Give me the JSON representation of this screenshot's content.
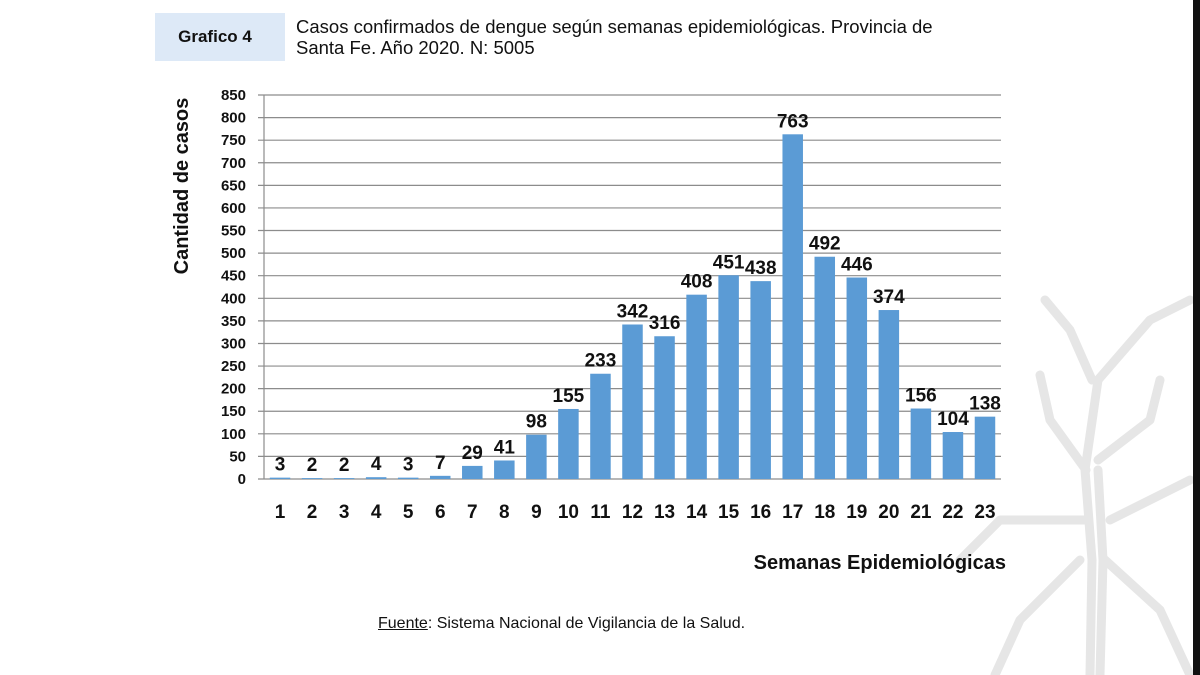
{
  "header": {
    "badge": "Grafico 4",
    "title_line1": "Casos confirmados de dengue según semanas epidemiológicas. Provincia de",
    "title_line2": "Santa Fe. Año 2020. N: 5005"
  },
  "source": {
    "label": "Fuente",
    "text": ": Sistema Nacional de Vigilancia de la Salud."
  },
  "colors": {
    "bar": "#5b9bd5",
    "grid": "#8c8c8c",
    "watermark": "#e6e6e6"
  },
  "chart_data": {
    "type": "bar",
    "title": "Casos confirmados de dengue según semanas epidemiológicas. Provincia de Santa Fe. Año 2020. N: 5005",
    "xlabel": "Semanas Epidemiológicas",
    "ylabel": "Cantidad de casos",
    "ylim": [
      0,
      850
    ],
    "yticks": [
      0,
      50,
      100,
      150,
      200,
      250,
      300,
      350,
      400,
      450,
      500,
      550,
      600,
      650,
      700,
      750,
      800,
      850
    ],
    "grid": true,
    "categories": [
      "1",
      "2",
      "3",
      "4",
      "5",
      "6",
      "7",
      "8",
      "9",
      "10",
      "11",
      "12",
      "13",
      "14",
      "15",
      "16",
      "17",
      "18",
      "19",
      "20",
      "21",
      "22",
      "23"
    ],
    "values": [
      3,
      2,
      2,
      4,
      3,
      7,
      29,
      41,
      98,
      155,
      233,
      342,
      316,
      408,
      451,
      438,
      763,
      492,
      446,
      374,
      156,
      104,
      138
    ]
  }
}
